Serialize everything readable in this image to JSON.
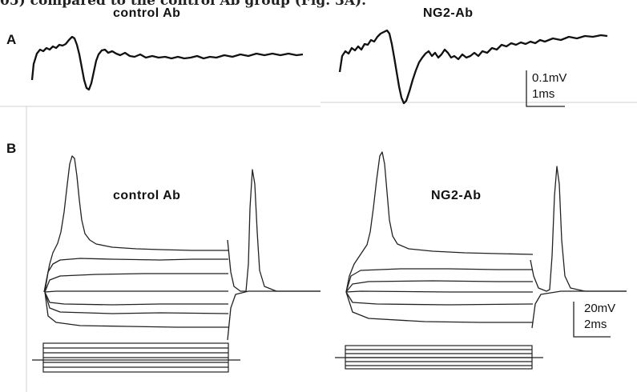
{
  "caption_fragment": "05) compared to the control Ab group (Fig. 3A).",
  "panel_a": {
    "letter": "A",
    "left_condition": "control Ab",
    "right_condition": "NG2-Ab",
    "scale_voltage": "0.1mV",
    "scale_time": "1ms"
  },
  "panel_b": {
    "letter": "B",
    "left_condition": "control Ab",
    "right_condition": "NG2-Ab",
    "scale_voltage": "20mV",
    "scale_time": "2ms"
  }
}
